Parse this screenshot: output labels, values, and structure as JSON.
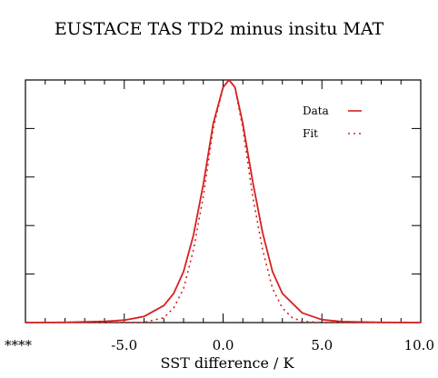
{
  "chart_data": {
    "type": "line",
    "title": "EUSTACE TAS TD2 minus insitu MAT",
    "xlabel": "SST difference / K",
    "ylabel": "",
    "xlim": [
      -10,
      10
    ],
    "ylim": [
      0,
      1.0
    ],
    "x_ticks": [
      -10,
      -5,
      0,
      5,
      10
    ],
    "x_tick_labels": [
      "****",
      "-5.0",
      "0.0",
      "5.0",
      "10.0"
    ],
    "grid": false,
    "legend": "top-right",
    "series": [
      {
        "name": "Data",
        "style": "solid",
        "color": "#d62020",
        "x": [
          -10,
          -8,
          -6,
          -5,
          -4,
          -3,
          -2.5,
          -2,
          -1.5,
          -1,
          -0.5,
          0,
          0.3,
          0.6,
          1,
          1.5,
          2,
          2.5,
          3,
          4,
          5,
          6,
          8,
          10
        ],
        "y": [
          0.0,
          0.001,
          0.005,
          0.01,
          0.025,
          0.07,
          0.12,
          0.21,
          0.36,
          0.57,
          0.82,
          0.97,
          1.0,
          0.97,
          0.82,
          0.58,
          0.37,
          0.21,
          0.12,
          0.04,
          0.012,
          0.004,
          0.001,
          0.0
        ]
      },
      {
        "name": "Fit",
        "style": "dotted",
        "color": "#d62020",
        "x": [
          -10,
          -5,
          -4,
          -3,
          -2.5,
          -2,
          -1.5,
          -1,
          -0.5,
          0,
          0.3,
          0.6,
          1,
          1.5,
          2,
          2.5,
          3,
          3.5,
          4,
          5,
          10
        ],
        "y": [
          0.0,
          0.0,
          0.001,
          0.02,
          0.06,
          0.14,
          0.3,
          0.52,
          0.8,
          0.97,
          1.0,
          0.97,
          0.8,
          0.52,
          0.3,
          0.14,
          0.06,
          0.02,
          0.005,
          0.0,
          0.0
        ]
      }
    ]
  }
}
